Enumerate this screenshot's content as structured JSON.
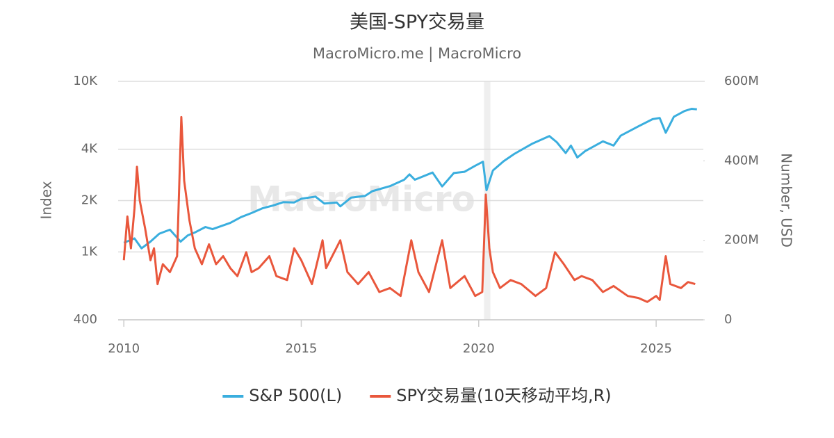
{
  "chart_data": {
    "type": "line",
    "title": "美国-SPY交易量",
    "subtitle": "MacroMicro.me | MacroMicro",
    "watermark": "MacroMicro",
    "y_label": "Index",
    "y2_label": "Number, USD",
    "xlim": [
      2009.84,
      2026.33
    ],
    "xticks": [
      2010,
      2015,
      2020,
      2025
    ],
    "ylim": [
      400,
      10000
    ],
    "yticks": [
      400,
      {
        "value": 1000,
        "label": "1K"
      },
      {
        "value": 2000,
        "label": "2K"
      },
      {
        "value": 4000,
        "label": "4K"
      },
      {
        "value": 10000,
        "label": "10K"
      }
    ],
    "y_log": true,
    "y2lim": [
      0,
      600000000
    ],
    "y2ticks": [
      0,
      {
        "value": 200000000,
        "label": "200M"
      },
      {
        "value": 400000000,
        "label": "400M"
      },
      {
        "value": 600000000,
        "label": "600M"
      }
    ],
    "grid": true,
    "legend": "bottom",
    "shaded_ranges": [
      [
        2020.15,
        2020.33
      ]
    ],
    "series": [
      {
        "name": "S&P 500(L)",
        "color": "#3aaede",
        "x": [
          2010.0,
          2010.3,
          2010.5,
          2010.75,
          2011.0,
          2011.3,
          2011.6,
          2011.8,
          2012.0,
          2012.3,
          2012.5,
          2012.8,
          2013.0,
          2013.3,
          2013.6,
          2013.9,
          2014.2,
          2014.5,
          2014.8,
          2015.0,
          2015.4,
          2015.65,
          2016.0,
          2016.1,
          2016.4,
          2016.8,
          2017.0,
          2017.5,
          2017.9,
          2018.05,
          2018.2,
          2018.7,
          2018.97,
          2019.3,
          2019.6,
          2019.9,
          2020.12,
          2020.22,
          2020.4,
          2020.7,
          2021.0,
          2021.5,
          2021.99,
          2022.2,
          2022.45,
          2022.6,
          2022.78,
          2023.0,
          2023.5,
          2023.8,
          2024.0,
          2024.5,
          2024.9,
          2025.1,
          2025.27,
          2025.5,
          2025.8,
          2026.0,
          2026.15
        ],
        "values": [
          1130,
          1200,
          1050,
          1150,
          1280,
          1350,
          1150,
          1250,
          1300,
          1400,
          1360,
          1430,
          1480,
          1600,
          1690,
          1800,
          1870,
          1960,
          1950,
          2050,
          2110,
          1920,
          1950,
          1850,
          2080,
          2130,
          2270,
          2430,
          2650,
          2850,
          2650,
          2920,
          2420,
          2900,
          2950,
          3200,
          3380,
          2300,
          3000,
          3400,
          3750,
          4300,
          4780,
          4400,
          3800,
          4200,
          3580,
          3900,
          4450,
          4200,
          4800,
          5450,
          6000,
          6100,
          5000,
          6200,
          6700,
          6900,
          6850
        ]
      },
      {
        "name": "SPY交易量(10天移动平均,R)",
        "color": "#e9573c",
        "axis": "y2",
        "x": [
          2010.0,
          2010.1,
          2010.2,
          2010.3,
          2010.37,
          2010.45,
          2010.6,
          2010.75,
          2010.85,
          2010.95,
          2011.1,
          2011.3,
          2011.5,
          2011.62,
          2011.7,
          2011.85,
          2012.0,
          2012.2,
          2012.4,
          2012.6,
          2012.8,
          2013.0,
          2013.2,
          2013.45,
          2013.6,
          2013.8,
          2014.1,
          2014.3,
          2014.6,
          2014.8,
          2015.0,
          2015.3,
          2015.6,
          2015.7,
          2016.1,
          2016.3,
          2016.6,
          2016.9,
          2017.2,
          2017.5,
          2017.8,
          2018.1,
          2018.3,
          2018.6,
          2018.97,
          2019.2,
          2019.6,
          2019.9,
          2020.1,
          2020.2,
          2020.3,
          2020.4,
          2020.6,
          2020.9,
          2021.2,
          2021.6,
          2021.9,
          2022.15,
          2022.4,
          2022.7,
          2022.9,
          2023.2,
          2023.5,
          2023.8,
          2024.2,
          2024.5,
          2024.75,
          2025.0,
          2025.1,
          2025.27,
          2025.4,
          2025.7,
          2025.9,
          2026.1
        ],
        "values": [
          150000000,
          260000000,
          180000000,
          280000000,
          385000000,
          300000000,
          230000000,
          150000000,
          180000000,
          90000000,
          140000000,
          120000000,
          160000000,
          510000000,
          350000000,
          250000000,
          180000000,
          140000000,
          190000000,
          140000000,
          160000000,
          130000000,
          110000000,
          170000000,
          120000000,
          130000000,
          160000000,
          110000000,
          100000000,
          180000000,
          150000000,
          90000000,
          200000000,
          130000000,
          200000000,
          120000000,
          90000000,
          120000000,
          70000000,
          80000000,
          60000000,
          200000000,
          120000000,
          70000000,
          200000000,
          80000000,
          110000000,
          60000000,
          70000000,
          315000000,
          180000000,
          120000000,
          80000000,
          100000000,
          90000000,
          60000000,
          80000000,
          170000000,
          140000000,
          100000000,
          110000000,
          100000000,
          70000000,
          85000000,
          60000000,
          55000000,
          45000000,
          60000000,
          50000000,
          160000000,
          90000000,
          80000000,
          95000000,
          90000000
        ]
      }
    ]
  }
}
